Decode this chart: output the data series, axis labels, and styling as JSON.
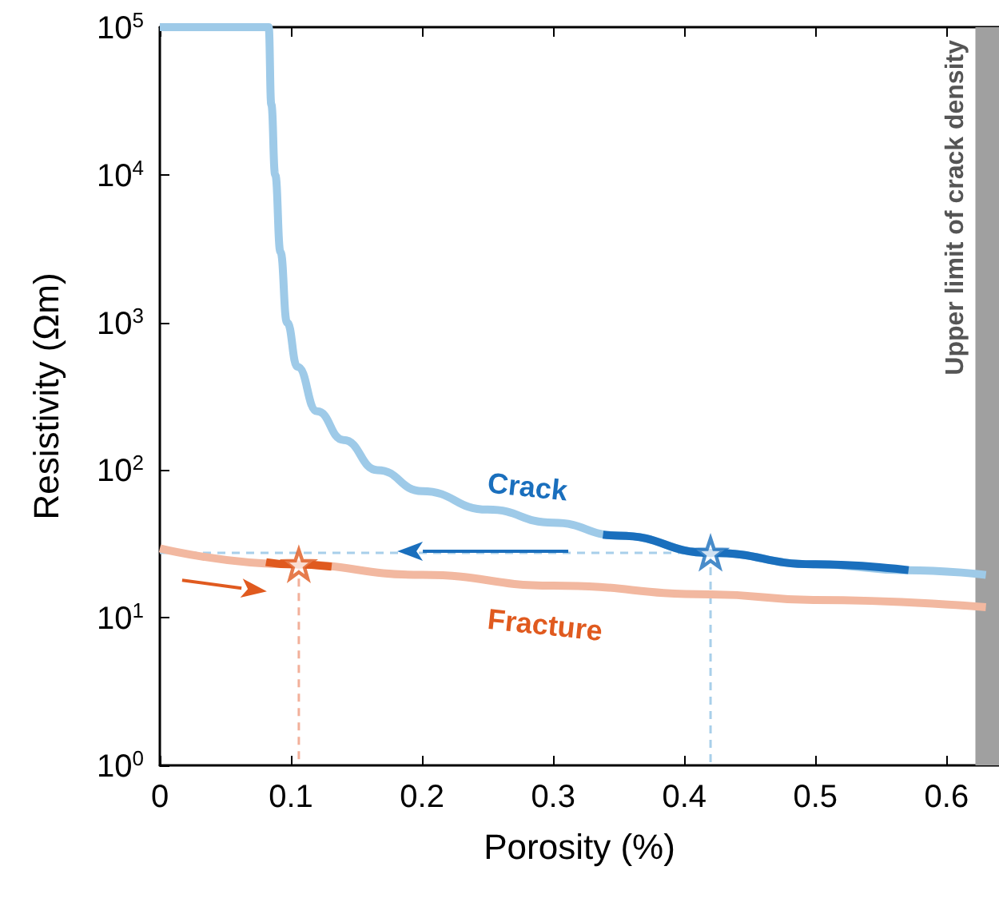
{
  "chart_data": {
    "type": "line",
    "xlabel": "Porosity (%)",
    "ylabel": "Resistivity (Ωm)",
    "xlim": [
      0,
      0.64
    ],
    "xticks": [
      0,
      0.1,
      0.2,
      0.3,
      0.4,
      0.5,
      0.6
    ],
    "ylim": [
      1,
      100000
    ],
    "yticks": [
      {
        "value": 1,
        "label": "10$^{0}$"
      },
      {
        "value": 10,
        "label": "10$^{1}$"
      },
      {
        "value": 100,
        "label": "10$^{2}$"
      },
      {
        "value": 1000,
        "label": "10$^{3}$"
      },
      {
        "value": 10000,
        "label": "10$^{4}$"
      },
      {
        "value": 100000,
        "label": "10$^{5}$"
      }
    ],
    "log": "y",
    "grid": false,
    "legend": false,
    "marker": "none",
    "line_style": "solid",
    "bands": [
      {
        "axis": "x",
        "from": 0.622,
        "to": 0.64,
        "label": "Upper limit of crack density",
        "color": "#a0a0a0"
      }
    ],
    "series": [
      {
        "line_style": "dashed",
        "color": "#a8cfea",
        "x": [
          0,
          0.42
        ],
        "values": [
          27.5,
          27.5
        ]
      },
      {
        "line_style": "dashed",
        "color": "#a8cfea",
        "x": [
          0.42,
          0.42
        ],
        "values": [
          27.5,
          1
        ]
      },
      {
        "line_style": "dashed",
        "color": "#f2b09a",
        "x": [
          0.106,
          0.106
        ],
        "values": [
          23,
          1
        ]
      },
      {
        "name": "Crack",
        "color": "#9ecae8",
        "x": [
          0,
          0.083,
          0.085,
          0.088,
          0.092,
          0.097,
          0.105,
          0.12,
          0.14,
          0.166,
          0.2,
          0.25,
          0.3,
          0.35,
          0.42,
          0.5,
          0.57,
          0.63
        ],
        "values": [
          100000,
          100000,
          30000,
          10000,
          3000,
          1000,
          500,
          250,
          160,
          100,
          72,
          54,
          44,
          36,
          27.5,
          23,
          21,
          19.5
        ]
      },
      {
        "color": "#1a6fbd",
        "x": [
          0.338,
          0.35,
          0.42,
          0.5,
          0.571
        ],
        "values": [
          36.5,
          36,
          27.5,
          23,
          21
        ]
      },
      {
        "name": "Fracture",
        "color": "#f2b8a0",
        "x": [
          0,
          0.1,
          0.2,
          0.3,
          0.42,
          0.5,
          0.63
        ],
        "values": [
          29.5,
          23,
          19.5,
          16.5,
          14.4,
          13.2,
          11.8
        ]
      },
      {
        "color": "#e05a1f",
        "x": [
          0.081,
          0.1,
          0.131
        ],
        "values": [
          23.8,
          23,
          22.2
        ]
      },
      {
        "type": "scatter",
        "marker": "star",
        "color": "#1a6fbd",
        "x": [
          0.42
        ],
        "values": [
          27.5
        ]
      },
      {
        "type": "scatter",
        "marker": "star",
        "color": "#e05a1f",
        "x": [
          0.106
        ],
        "values": [
          23
        ]
      }
    ]
  }
}
